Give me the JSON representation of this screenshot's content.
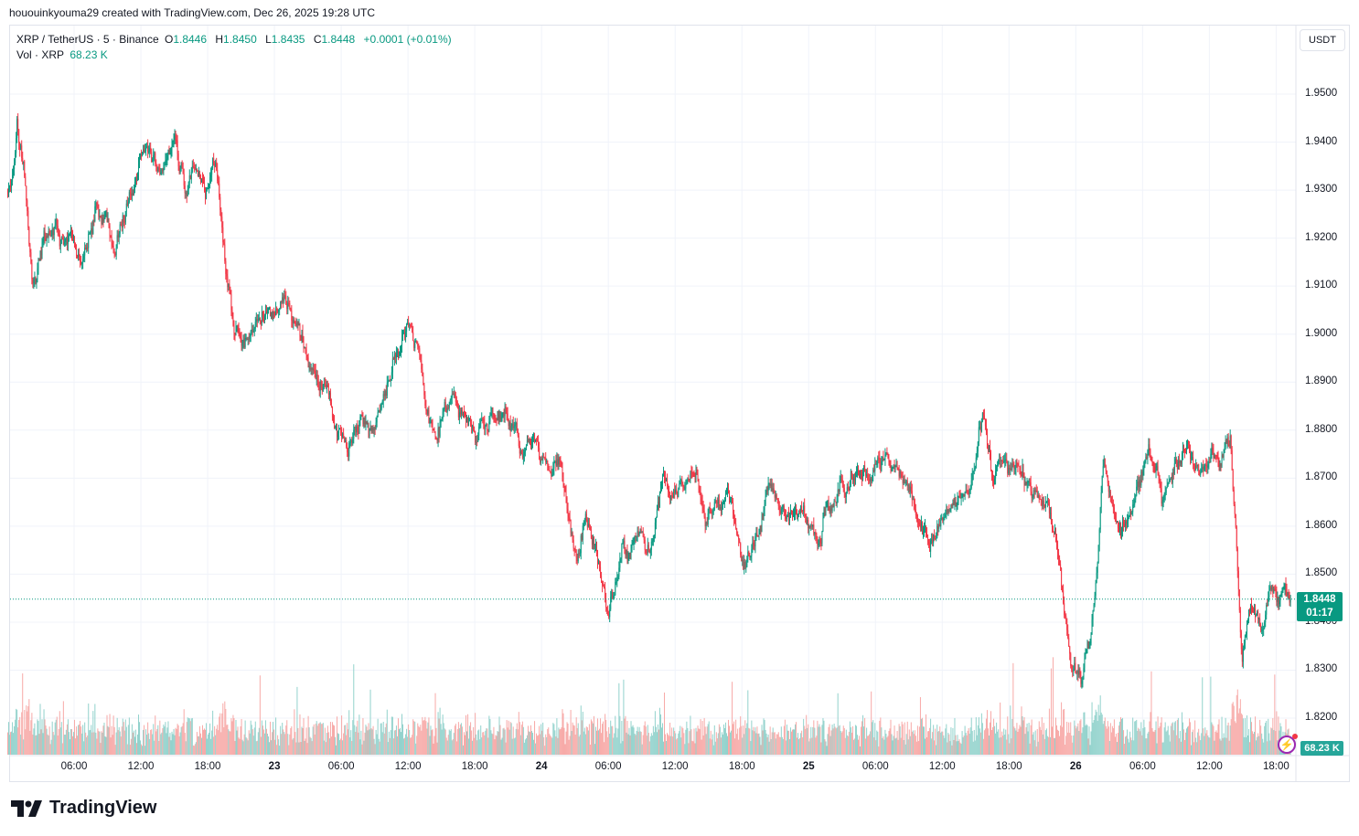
{
  "attribution": "hououinkyouma29 created with TradingView.com, Dec 26, 2025 19:28 UTC",
  "legend": {
    "symbol": "XRP / TetherUS · 5 · Binance",
    "o_label": "O",
    "o": "1.8446",
    "h_label": "H",
    "h": "1.8450",
    "l_label": "L",
    "l": "1.8435",
    "c_label": "C",
    "c": "1.8448",
    "change": "+0.0001 (+0.01%)",
    "vol_label": "Vol · XRP",
    "vol": "68.23 K"
  },
  "currency_button": "USDT",
  "last_price": "1.8448",
  "countdown": "01:17",
  "last_volume": "68.23 K",
  "logo_text": "TradingView",
  "colors": {
    "up": "#089981",
    "down": "#F23645",
    "vol_up": "#92d2cc",
    "vol_down": "#f7a9a7",
    "grid": "#f0f3fa"
  },
  "chart_data": {
    "type": "candlestick",
    "interval": "5m",
    "price_ticks": [
      "1.9500",
      "1.9400",
      "1.9300",
      "1.9200",
      "1.9100",
      "1.9000",
      "1.8900",
      "1.8800",
      "1.8700",
      "1.8600",
      "1.8500",
      "1.8400",
      "1.8300",
      "1.8200"
    ],
    "ylim": [
      1.8155,
      1.9585
    ],
    "time_ticks": [
      {
        "label": "06:00",
        "t": "22 06:00"
      },
      {
        "label": "12:00",
        "t": "22 12:00"
      },
      {
        "label": "18:00",
        "t": "22 18:00"
      },
      {
        "label": "23",
        "t": "23 00:00",
        "day": true
      },
      {
        "label": "06:00",
        "t": "23 06:00"
      },
      {
        "label": "12:00",
        "t": "23 12:00"
      },
      {
        "label": "18:00",
        "t": "23 18:00"
      },
      {
        "label": "24",
        "t": "24 00:00",
        "day": true
      },
      {
        "label": "06:00",
        "t": "24 06:00"
      },
      {
        "label": "12:00",
        "t": "24 12:00"
      },
      {
        "label": "18:00",
        "t": "24 18:00"
      },
      {
        "label": "25",
        "t": "25 00:00",
        "day": true
      },
      {
        "label": "06:00",
        "t": "25 06:00"
      },
      {
        "label": "12:00",
        "t": "25 12:00"
      },
      {
        "label": "18:00",
        "t": "25 18:00"
      },
      {
        "label": "26",
        "t": "26 00:00",
        "day": true
      },
      {
        "label": "06:00",
        "t": "26 06:00"
      },
      {
        "label": "12:00",
        "t": "26 12:00"
      },
      {
        "label": "18:00",
        "t": "26 18:00"
      }
    ],
    "price_path": [
      [
        "22 00:20",
        1.93
      ],
      [
        "22 00:50",
        1.945
      ],
      [
        "22 01:25",
        1.935
      ],
      [
        "22 02:10",
        1.908
      ],
      [
        "22 03:00",
        1.918
      ],
      [
        "22 04:20",
        1.922
      ],
      [
        "22 05:55",
        1.918
      ],
      [
        "22 06:40",
        1.915
      ],
      [
        "22 08:00",
        1.928
      ],
      [
        "22 09:35",
        1.918
      ],
      [
        "22 10:50",
        1.93
      ],
      [
        "22 12:30",
        1.938
      ],
      [
        "22 13:40",
        1.932
      ],
      [
        "22 15:00",
        1.942
      ],
      [
        "22 15:50",
        1.93
      ],
      [
        "22 17:00",
        1.935
      ],
      [
        "22 17:50",
        1.928
      ],
      [
        "22 18:40",
        1.936
      ],
      [
        "22 19:30",
        1.915
      ],
      [
        "22 20:20",
        1.9
      ],
      [
        "22 21:05",
        1.897
      ],
      [
        "22 22:25",
        1.902
      ],
      [
        "22 23:35",
        1.906
      ],
      [
        "23 00:50",
        1.905
      ],
      [
        "23 02:00",
        1.903
      ],
      [
        "23 03:20",
        1.892
      ],
      [
        "23 04:05",
        1.89
      ],
      [
        "23 05:20",
        1.882
      ],
      [
        "23 06:35",
        1.878
      ],
      [
        "23 07:50",
        1.882
      ],
      [
        "23 09:00",
        1.88
      ],
      [
        "23 10:20",
        1.892
      ],
      [
        "23 11:30",
        1.902
      ],
      [
        "23 12:40",
        1.9
      ],
      [
        "23 13:35",
        1.885
      ],
      [
        "23 14:25",
        1.878
      ],
      [
        "23 15:35",
        1.885
      ],
      [
        "23 16:50",
        1.882
      ],
      [
        "23 18:00",
        1.878
      ],
      [
        "23 19:20",
        1.882
      ],
      [
        "23 20:30",
        1.885
      ],
      [
        "23 21:50",
        1.88
      ],
      [
        "23 23:00",
        1.875
      ],
      [
        "24 00:10",
        1.872
      ],
      [
        "24 01:30",
        1.876
      ],
      [
        "24 02:20",
        1.862
      ],
      [
        "24 03:05",
        1.852
      ],
      [
        "24 03:55",
        1.863
      ],
      [
        "24 05:10",
        1.85
      ],
      [
        "24 06:00",
        1.84
      ],
      [
        "24 07:10",
        1.853
      ],
      [
        "24 08:25",
        1.858
      ],
      [
        "24 09:40",
        1.855
      ],
      [
        "24 10:55",
        1.87
      ],
      [
        "24 12:05",
        1.866
      ],
      [
        "24 13:50",
        1.87
      ],
      [
        "24 14:35",
        1.86
      ],
      [
        "24 15:50",
        1.862
      ],
      [
        "24 17:00",
        1.866
      ],
      [
        "24 17:55",
        1.852
      ],
      [
        "24 19:05",
        1.858
      ],
      [
        "24 20:25",
        1.867
      ],
      [
        "24 22:00",
        1.862
      ],
      [
        "24 23:40",
        1.862
      ],
      [
        "25 00:55",
        1.858
      ],
      [
        "25 02:05",
        1.866
      ],
      [
        "25 03:40",
        1.872
      ],
      [
        "25 05:25",
        1.87
      ],
      [
        "25 06:35",
        1.874
      ],
      [
        "25 07:55",
        1.873
      ],
      [
        "25 09:05",
        1.87
      ],
      [
        "25 09:55",
        1.862
      ],
      [
        "25 10:50",
        1.857
      ],
      [
        "25 12:00",
        1.86
      ],
      [
        "25 13:10",
        1.866
      ],
      [
        "25 14:25",
        1.866
      ],
      [
        "25 15:35",
        1.884
      ],
      [
        "25 16:30",
        1.87
      ],
      [
        "25 17:40",
        1.872
      ],
      [
        "25 18:55",
        1.872
      ],
      [
        "25 20:10",
        1.868
      ],
      [
        "25 21:25",
        1.864
      ],
      [
        "25 22:10",
        1.86
      ],
      [
        "25 22:50",
        1.845
      ],
      [
        "25 23:30",
        1.832
      ],
      [
        "26 00:20",
        1.83
      ],
      [
        "26 01:20",
        1.838
      ],
      [
        "26 01:50",
        1.85
      ],
      [
        "26 02:25",
        1.875
      ],
      [
        "26 03:10",
        1.866
      ],
      [
        "26 04:00",
        1.858
      ],
      [
        "26 05:20",
        1.866
      ],
      [
        "26 06:30",
        1.878
      ],
      [
        "26 07:40",
        1.866
      ],
      [
        "26 08:55",
        1.872
      ],
      [
        "26 10:10",
        1.876
      ],
      [
        "26 11:25",
        1.872
      ],
      [
        "26 12:35",
        1.874
      ],
      [
        "26 13:50",
        1.876
      ],
      [
        "26 14:25",
        1.855
      ],
      [
        "26 14:55",
        1.832
      ],
      [
        "26 15:40",
        1.845
      ],
      [
        "26 16:40",
        1.838
      ],
      [
        "26 17:30",
        1.846
      ],
      [
        "26 18:25",
        1.845
      ],
      [
        "26 19:15",
        1.8448
      ]
    ]
  }
}
